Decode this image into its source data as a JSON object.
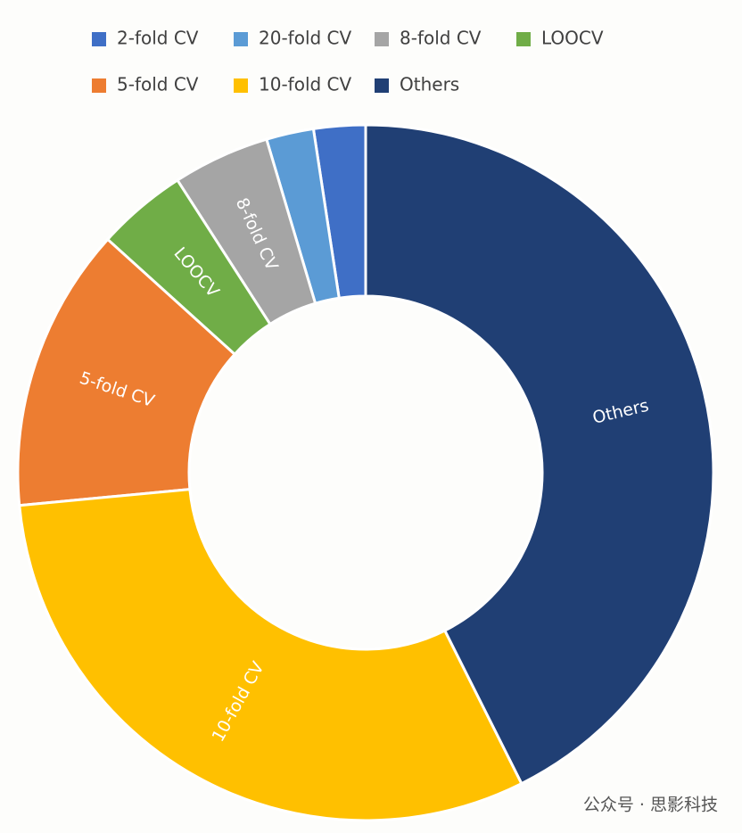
{
  "chart_data": {
    "type": "donut",
    "categories": [
      "2-fold CV",
      "20-fold CV",
      "8-fold CV",
      "LOOCV",
      "5-fold CV",
      "10-fold CV",
      "Others"
    ],
    "values": [
      2.4,
      2.2,
      4.5,
      4.2,
      13.2,
      30.9,
      42.6
    ],
    "colors": [
      "#3F6FC6",
      "#5B9BD5",
      "#A5A5A5",
      "#70AD47",
      "#ED7D31",
      "#FFC000",
      "#203F74"
    ],
    "legend": "top",
    "watermark": "公众号 · 思影科技"
  }
}
